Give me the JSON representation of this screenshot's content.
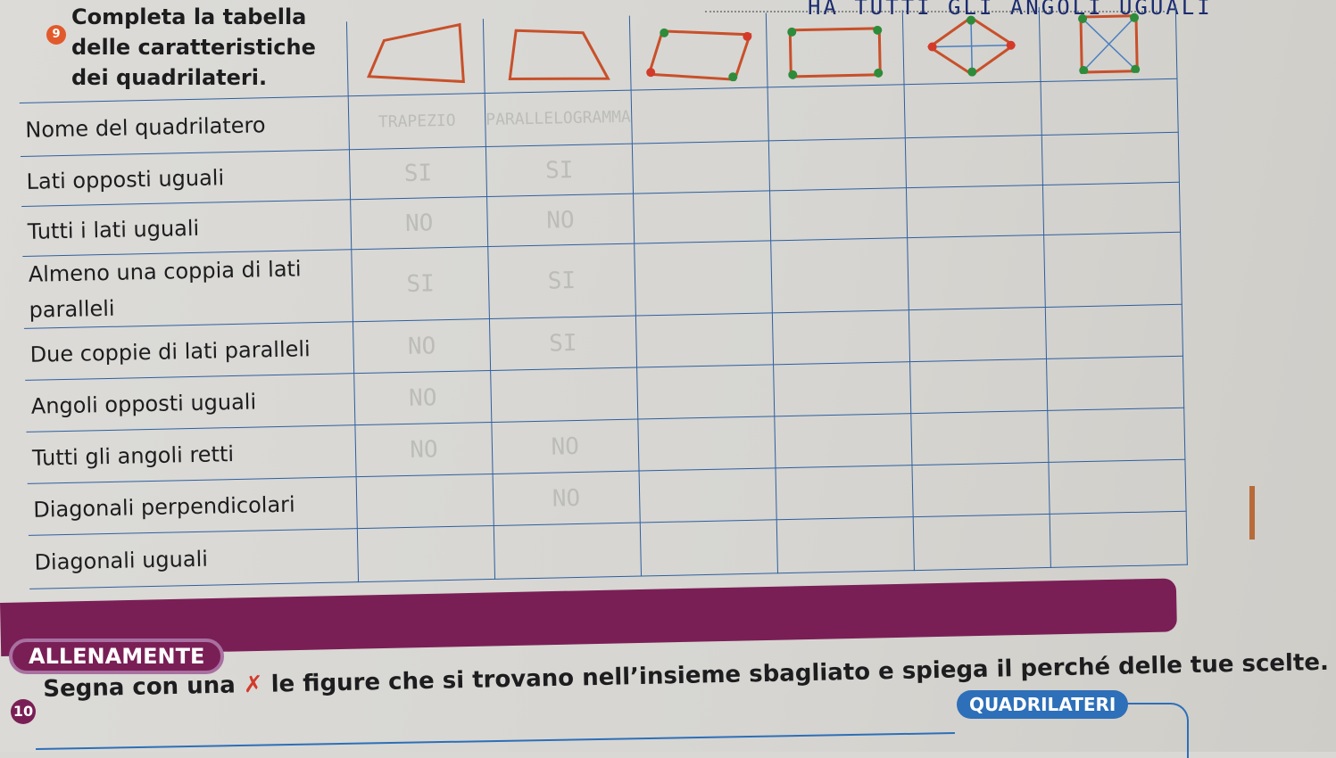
{
  "exercise9": {
    "number": "9",
    "title": "Completa la tabella delle caratteristiche dei quadrilateri.",
    "handwritten_note": "HA TUTTI GLI ANGOLI UGUALI"
  },
  "table": {
    "shapes": [
      "irregular-quadrilateral-icon",
      "trapezoid-icon",
      "parallelogram-icon",
      "rectangle-icon",
      "rhombus-icon",
      "square-icon"
    ],
    "rows": [
      {
        "label": "Nome del quadrilatero",
        "cells": [
          "TRAPEZIO",
          "PARALLELOGRAMMA",
          "",
          "",
          "",
          ""
        ]
      },
      {
        "label": "Lati opposti uguali",
        "cells": [
          "SI",
          "SI",
          "",
          "",
          "",
          ""
        ]
      },
      {
        "label": "Tutti i lati uguali",
        "cells": [
          "NO",
          "NO",
          "",
          "",
          "",
          ""
        ]
      },
      {
        "label": "Almeno una coppia di lati paralleli",
        "cells": [
          "SI",
          "SI",
          "",
          "",
          "",
          ""
        ]
      },
      {
        "label": "Due coppie di lati paralleli",
        "cells": [
          "NO",
          "SI",
          "",
          "",
          "",
          ""
        ]
      },
      {
        "label": "Angoli opposti uguali",
        "cells": [
          "NO",
          "",
          "",
          "",
          "",
          ""
        ]
      },
      {
        "label": "Tutti gli angoli retti",
        "cells": [
          "NO",
          "NO",
          "",
          "",
          "",
          ""
        ]
      },
      {
        "label": "Diagonali perpendicolari",
        "cells": [
          "",
          "NO",
          "",
          "",
          "",
          ""
        ]
      },
      {
        "label": "Diagonali uguali",
        "cells": [
          "",
          "",
          "",
          "",
          "",
          ""
        ]
      }
    ]
  },
  "section": {
    "label": "ALLENAMENTE"
  },
  "exercise10": {
    "number": "10",
    "text_before": "Segna con una",
    "mark": "✗",
    "text_after": "le figure che si trovano nell’insieme sbagliato e spiega il perché delle tue scelte.",
    "set_label": "QUADRILATERI"
  },
  "colors": {
    "shape_stroke": "#c8502a",
    "angle_green": "#2e8b3a",
    "angle_red": "#d43a2a",
    "grid": "#2d5fa0",
    "band": "#7a1f56",
    "set_label": "#2d6fb8"
  }
}
